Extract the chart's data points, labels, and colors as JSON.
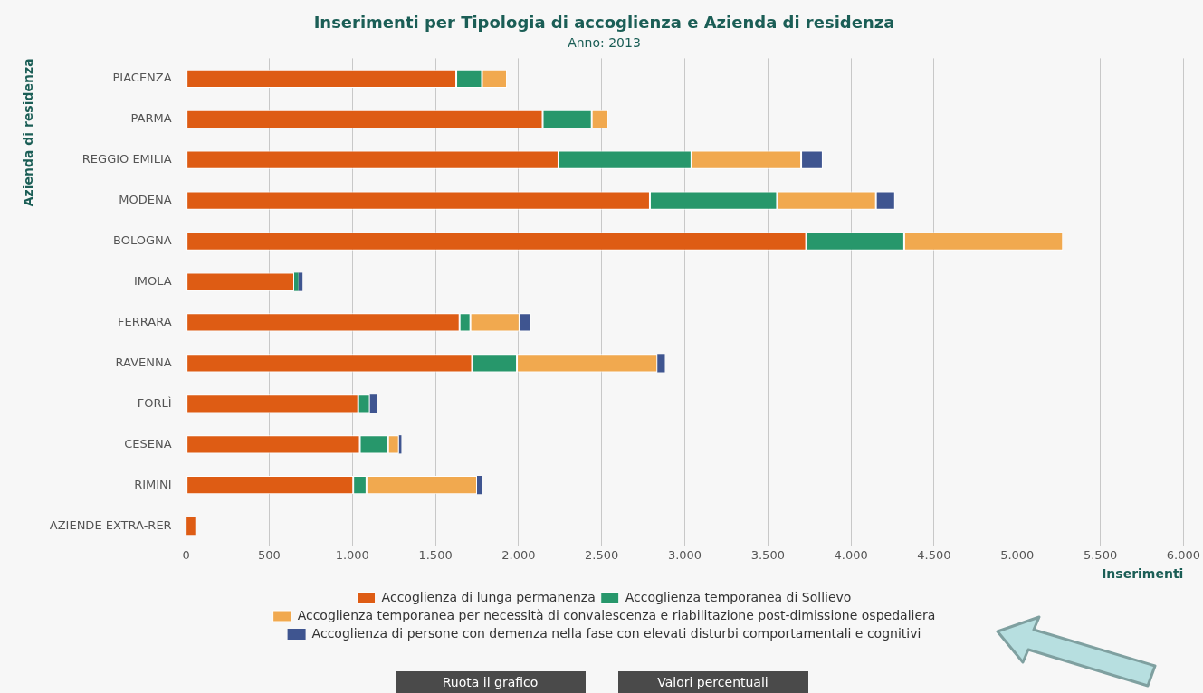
{
  "chart_data": {
    "type": "bar",
    "orientation": "horizontal",
    "stacked": true,
    "title": "Inserimenti per Tipologia di accoglienza e Azienda di residenza",
    "subtitle": "Anno: 2013",
    "xlabel": "Inserimenti",
    "ylabel": "Azienda di residenza",
    "categories": [
      "PIACENZA",
      "PARMA",
      "REGGIO EMILIA",
      "MODENA",
      "BOLOGNA",
      "IMOLA",
      "FERRARA",
      "RAVENNA",
      "FORLÌ",
      "CESENA",
      "RIMINI",
      "AZIENDE EXTRA-RER"
    ],
    "series": [
      {
        "name": "Accoglienza di lunga permanenza",
        "color": "#de5c14",
        "values": [
          1625,
          2145,
          2240,
          2790,
          3730,
          650,
          1645,
          1720,
          1035,
          1045,
          1005,
          55
        ]
      },
      {
        "name": "Accoglienza temporanea di Sollievo",
        "color": "#27976b",
        "values": [
          155,
          295,
          800,
          765,
          590,
          25,
          65,
          270,
          70,
          170,
          80,
          0
        ]
      },
      {
        "name": "Accoglienza temporanea per necessità di convalescenza e riabilitazione post-dimissione ospedaliera",
        "color": "#f1a94f",
        "values": [
          150,
          100,
          660,
          595,
          955,
          0,
          295,
          845,
          0,
          65,
          665,
          0
        ]
      },
      {
        "name": "Accoglienza di persone con demenza nella fase con elevati disturbi comportamentali e cognitivi",
        "color": "#3f5590",
        "values": [
          0,
          0,
          130,
          115,
          0,
          25,
          70,
          45,
          45,
          15,
          30,
          0
        ]
      }
    ],
    "xlim": [
      0,
      6000
    ],
    "xticks": [
      0,
      500,
      {
        "value": 1000,
        "label": "1.000"
      },
      {
        "value": 1500,
        "label": "1.500"
      },
      {
        "value": 2000,
        "label": "2.000"
      },
      {
        "value": 2500,
        "label": "2.500"
      },
      {
        "value": 3000,
        "label": "3.000"
      },
      {
        "value": 3500,
        "label": "3.500"
      },
      {
        "value": 4000,
        "label": "4.000"
      },
      {
        "value": 4500,
        "label": "4.500"
      },
      {
        "value": 5000,
        "label": "5.000"
      },
      {
        "value": 5500,
        "label": "5.500"
      },
      {
        "value": 6000,
        "label": "6.000"
      }
    ],
    "grid": "x",
    "legend": "bottom",
    "annotations": [
      "Ruota il grafico",
      "Valori percentuali"
    ]
  }
}
